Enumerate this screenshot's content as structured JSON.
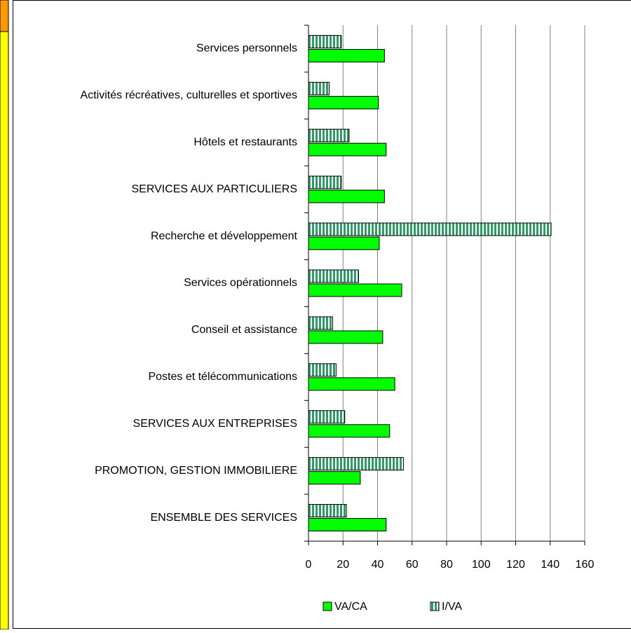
{
  "chart_data": {
    "type": "hbar",
    "categories": [
      "Services personnels",
      "Activités récréatives, culturelles et sportives",
      "Hôtels et restaurants",
      "SERVICES AUX PARTICULIERS",
      "Recherche et développement",
      "Services opérationnels",
      "Conseil et assistance",
      "Postes et télécommunications",
      "SERVICES AUX ENTREPRISES",
      "PROMOTION, GESTION IMMOBILIERE",
      "ENSEMBLE DES SERVICES"
    ],
    "series": [
      {
        "name": "VA/CA",
        "color": "#00ff00",
        "values": [
          44,
          40.5,
          45,
          44,
          41,
          54,
          43,
          50,
          47,
          30,
          45
        ]
      },
      {
        "name": "I/VA",
        "color": "#339966",
        "pattern": "vertical-stripes",
        "values": [
          19,
          12,
          23.5,
          19,
          140.5,
          29,
          14,
          16,
          21,
          55,
          22
        ]
      }
    ],
    "xlim": [
      0,
      160
    ],
    "xticks": [
      0,
      20,
      40,
      60,
      80,
      100,
      120,
      140,
      160
    ],
    "grid": true,
    "legend": "bottom"
  }
}
